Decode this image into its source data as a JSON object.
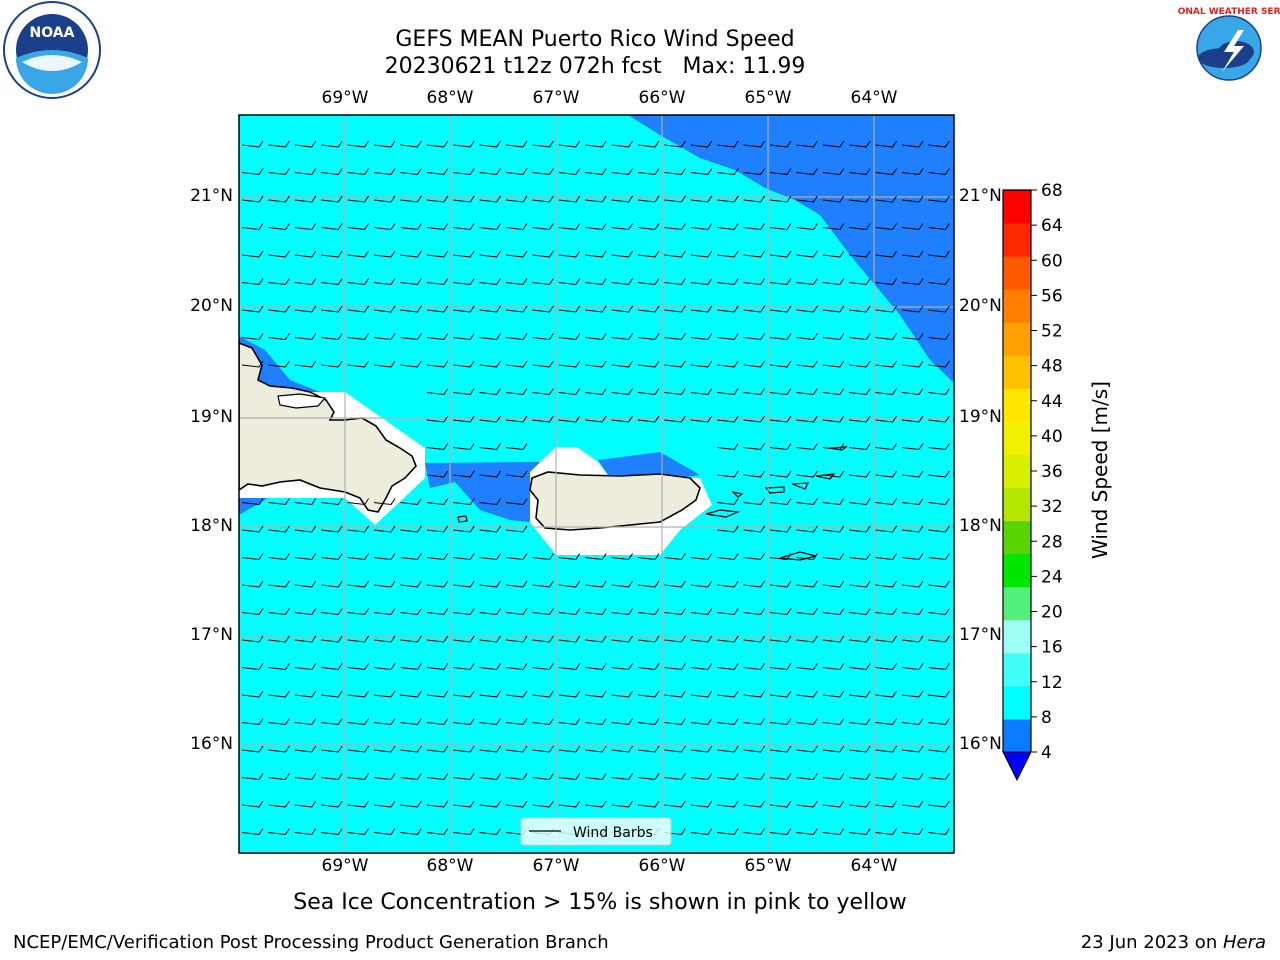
{
  "title": {
    "line1": "GEFS MEAN Puerto Rico Wind Speed",
    "line2": "20230621 t12z 072h fcst   Max: 11.99"
  },
  "map": {
    "lon_ticks": [
      "69°W",
      "68°W",
      "67°W",
      "66°W",
      "65°W",
      "64°W"
    ],
    "lat_ticks": [
      "21°N",
      "20°N",
      "19°N",
      "18°N",
      "17°N",
      "16°N"
    ],
    "legend_label": "Wind Barbs",
    "colors": {
      "ocean_low": "#00ffff",
      "ocean_mid": "#1e7fff",
      "land": "#eeecdc",
      "gap": "#ffffff"
    }
  },
  "colorbar": {
    "label": "Wind Speed [m/s]",
    "ticks": [
      "4",
      "8",
      "12",
      "16",
      "20",
      "24",
      "28",
      "32",
      "36",
      "40",
      "44",
      "48",
      "52",
      "56",
      "60",
      "64",
      "68"
    ],
    "colors": [
      "#0a7cff",
      "#00ffff",
      "#40fff8",
      "#9ffff7",
      "#52f07a",
      "#00e600",
      "#5ad400",
      "#b4e600",
      "#d8f000",
      "#f0f000",
      "#ffe600",
      "#ffc000",
      "#ffa000",
      "#ff8000",
      "#ff5a00",
      "#ff2800",
      "#ff0000"
    ],
    "extend_color": "#0000ff"
  },
  "caption": "Sea Ice Concentration > 15% is shown in pink to yellow",
  "footer": {
    "left": "NCEP/EMC/Verification Post Processing Product Generation Branch",
    "right_date": "23 Jun 2023 on ",
    "right_host": "Hera"
  },
  "logos": {
    "noaa": "NOAA",
    "nws": "NATIONAL WEATHER SERVICE"
  }
}
